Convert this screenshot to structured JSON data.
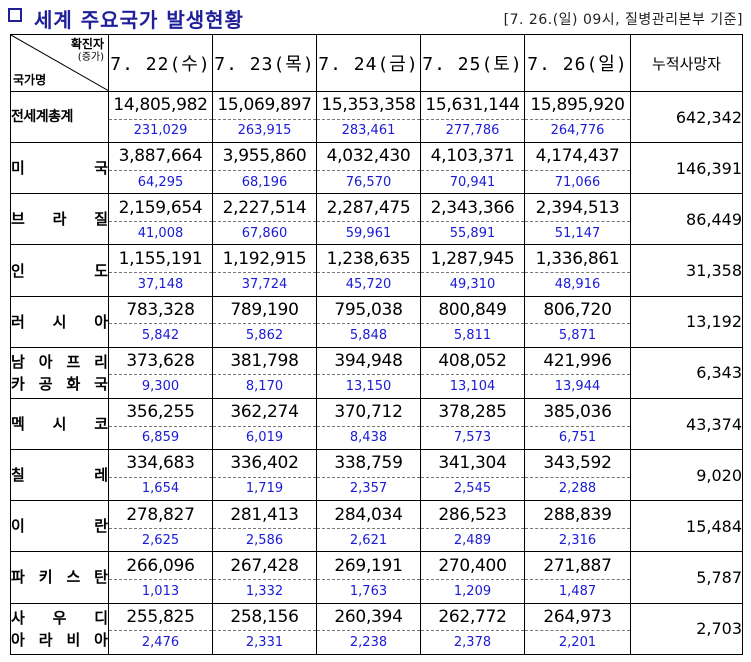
{
  "title": "세계 주요국가 발생현황",
  "note": "[7. 26.(일) 09시, 질병관리본부 기준]",
  "header": {
    "corner_top": "확진자",
    "corner_sub": "(증가)",
    "corner_bottom": "국가명",
    "dates": [
      "7. 22(수)",
      "7. 23(목)",
      "7. 24(금)",
      "7. 25(토)",
      "7. 26(일)"
    ],
    "deaths": "누적사망자"
  },
  "rows": [
    {
      "country": "전세계총계",
      "totals": [
        "14,805,982",
        "15,069,897",
        "15,353,358",
        "15,631,144",
        "15,895,920"
      ],
      "new": [
        "231,029",
        "263,915",
        "283,461",
        "277,786",
        "264,776"
      ],
      "deaths": "642,342"
    },
    {
      "country": "미국",
      "totals": [
        "3,887,664",
        "3,955,860",
        "4,032,430",
        "4,103,371",
        "4,174,437"
      ],
      "new": [
        "64,295",
        "68,196",
        "76,570",
        "70,941",
        "71,066"
      ],
      "deaths": "146,391"
    },
    {
      "country": "브라질",
      "totals": [
        "2,159,654",
        "2,227,514",
        "2,287,475",
        "2,343,366",
        "2,394,513"
      ],
      "new": [
        "41,008",
        "67,860",
        "59,961",
        "55,891",
        "51,147"
      ],
      "deaths": "86,449"
    },
    {
      "country": "인도",
      "totals": [
        "1,155,191",
        "1,192,915",
        "1,238,635",
        "1,287,945",
        "1,336,861"
      ],
      "new": [
        "37,148",
        "37,724",
        "45,720",
        "49,310",
        "48,916"
      ],
      "deaths": "31,358"
    },
    {
      "country": "러시아",
      "totals": [
        "783,328",
        "789,190",
        "795,038",
        "800,849",
        "806,720"
      ],
      "new": [
        "5,842",
        "5,862",
        "5,848",
        "5,811",
        "5,871"
      ],
      "deaths": "13,192"
    },
    {
      "country": "남아프리카공화국",
      "totals": [
        "373,628",
        "381,798",
        "394,948",
        "408,052",
        "421,996"
      ],
      "new": [
        "9,300",
        "8,170",
        "13,150",
        "13,104",
        "13,944"
      ],
      "deaths": "6,343"
    },
    {
      "country": "멕시코",
      "totals": [
        "356,255",
        "362,274",
        "370,712",
        "378,285",
        "385,036"
      ],
      "new": [
        "6,859",
        "6,019",
        "8,438",
        "7,573",
        "6,751"
      ],
      "deaths": "43,374"
    },
    {
      "country": "칠레",
      "totals": [
        "334,683",
        "336,402",
        "338,759",
        "341,304",
        "343,592"
      ],
      "new": [
        "1,654",
        "1,719",
        "2,357",
        "2,545",
        "2,288"
      ],
      "deaths": "9,020"
    },
    {
      "country": "이란",
      "totals": [
        "278,827",
        "281,413",
        "284,034",
        "286,523",
        "288,839"
      ],
      "new": [
        "2,625",
        "2,586",
        "2,621",
        "2,489",
        "2,316"
      ],
      "deaths": "15,484"
    },
    {
      "country": "파키스탄",
      "totals": [
        "266,096",
        "267,428",
        "269,191",
        "270,400",
        "271,887"
      ],
      "new": [
        "1,013",
        "1,332",
        "1,763",
        "1,209",
        "1,487"
      ],
      "deaths": "5,787"
    },
    {
      "country": "사우디아라비아",
      "totals": [
        "255,825",
        "258,156",
        "260,394",
        "262,772",
        "264,973"
      ],
      "new": [
        "2,476",
        "2,331",
        "2,238",
        "2,378",
        "2,201"
      ],
      "deaths": "2,703"
    }
  ]
}
